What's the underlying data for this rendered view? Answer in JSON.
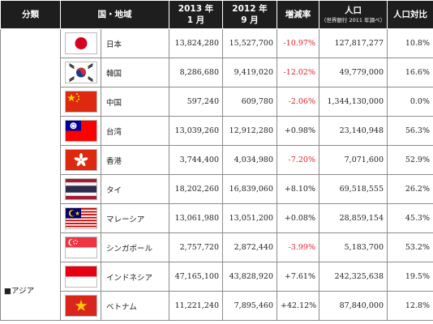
{
  "headers": {
    "category": "分類",
    "country": "国・地域",
    "y2013_line1": "2013 年",
    "y2013_line2": "1 月",
    "y2012_line1": "2012 年",
    "y2012_line2": "9 月",
    "rate": "増減率",
    "population": "人口",
    "population_note": "（世界銀行 2011 年調べ）",
    "ratio": "人口対比"
  },
  "region": "■アジア",
  "rows": [
    {
      "flag": "japan-flag-icon",
      "name": "日本",
      "jan2013": "13,824,280",
      "sep2012": "15,527,700",
      "rate": "-10.97%",
      "population": "127,817,277",
      "ratio": "10.8%"
    },
    {
      "flag": "korea-flag-icon",
      "name": "韓国",
      "jan2013": "8,286,680",
      "sep2012": "9,419,020",
      "rate": "-12.02%",
      "population": "49,779,000",
      "ratio": "16.6%"
    },
    {
      "flag": "china-flag-icon",
      "name": "中国",
      "jan2013": "597,240",
      "sep2012": "609,780",
      "rate": "-2.06%",
      "population": "1,344,130,000",
      "ratio": "0.0%"
    },
    {
      "flag": "taiwan-flag-icon",
      "name": "台湾",
      "jan2013": "13,039,260",
      "sep2012": "12,912,280",
      "rate": "+0.98%",
      "population": "23,140,948",
      "ratio": "56.3%"
    },
    {
      "flag": "hongkong-flag-icon",
      "name": "香港",
      "jan2013": "3,744,400",
      "sep2012": "4,034,980",
      "rate": "-7.20%",
      "population": "7,071,600",
      "ratio": "52.9%"
    },
    {
      "flag": "thailand-flag-icon",
      "name": "タイ",
      "jan2013": "18,202,260",
      "sep2012": "16,839,060",
      "rate": "+8.10%",
      "population": "69,518,555",
      "ratio": "26.2%"
    },
    {
      "flag": "malaysia-flag-icon",
      "name": "マレーシア",
      "jan2013": "13,061,980",
      "sep2012": "13,051,200",
      "rate": "+0.08%",
      "population": "28,859,154",
      "ratio": "45.3%"
    },
    {
      "flag": "singapore-flag-icon",
      "name": "シンガポール",
      "jan2013": "2,757,720",
      "sep2012": "2,872,440",
      "rate": "-3.99%",
      "population": "5,183,700",
      "ratio": "53.2%"
    },
    {
      "flag": "indonesia-flag-icon",
      "name": "インドネシア",
      "jan2013": "47,165,100",
      "sep2012": "43,828,920",
      "rate": "+7.61%",
      "population": "242,325,638",
      "ratio": "19.5%"
    },
    {
      "flag": "vietnam-flag-icon",
      "name": "ベトナム",
      "jan2013": "11,221,240",
      "sep2012": "7,895,460",
      "rate": "+42.12%",
      "population": "87,840,000",
      "ratio": "12.8%"
    }
  ],
  "colors": {
    "header_bg": "#1e1e1e",
    "negative": "#e0212b"
  }
}
